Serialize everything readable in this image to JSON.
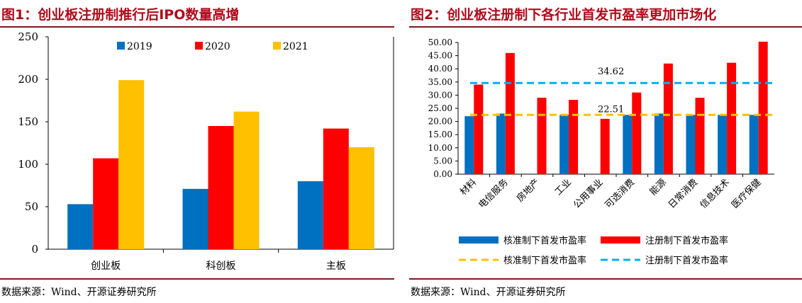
{
  "figures": [
    {
      "title": "图1：创业板注册制推行后IPO数量高增",
      "source": "数据来源：Wind、开源证券研究所"
    },
    {
      "title": "图2：创业板注册制下各行业首发市盈率更加市场化",
      "source": "数据来源：Wind、开源证券研究所"
    }
  ],
  "colors": {
    "blue": "#0070c0",
    "red": "#ff0000",
    "gold": "#ffc000",
    "cyan": "#00b0f0",
    "title_red": "#b00a1a"
  },
  "chart_data": [
    {
      "type": "bar",
      "title": "图1：创业板注册制推行后IPO数量高增",
      "categories": [
        "创业板",
        "科创板",
        "主板"
      ],
      "series": [
        {
          "name": "2019",
          "values": [
            53,
            71,
            80
          ]
        },
        {
          "name": "2020",
          "values": [
            107,
            145,
            142
          ]
        },
        {
          "name": "2021",
          "values": [
            199,
            162,
            120
          ]
        }
      ],
      "ylim": [
        0,
        250
      ],
      "yticks": [
        "0",
        "50",
        "100",
        "150",
        "200",
        "250"
      ],
      "legend": "top",
      "grid": false
    },
    {
      "type": "bar",
      "title": "图2：创业板注册制下各行业首发市盈率更加市场化",
      "categories": [
        "材料",
        "电信服务",
        "房地产",
        "工业",
        "公用事业",
        "可选消费",
        "能源",
        "日常消费",
        "信息技术",
        "医疗保健"
      ],
      "series": [
        {
          "name": "核准制下首发市盈率",
          "values": [
            22,
            23,
            null,
            22.5,
            null,
            22.5,
            23,
            22.5,
            22.5,
            22.5
          ]
        },
        {
          "name": "注册制下首发市盈率",
          "values": [
            34,
            46,
            29,
            28.2,
            21,
            31,
            42,
            29,
            42.3,
            50.3
          ]
        }
      ],
      "reference_lines": [
        {
          "name": "核准制下首发市盈率",
          "value": 22.51,
          "label": "22.51"
        },
        {
          "name": "注册制下首发市盈率",
          "value": 34.62,
          "label": "34.62"
        }
      ],
      "ylim": [
        0,
        50
      ],
      "yticks": [
        "0.00",
        "5.00",
        "10.00",
        "15.00",
        "20.00",
        "25.00",
        "30.00",
        "35.00",
        "40.00",
        "45.00",
        "50.00"
      ],
      "legend": "bottom",
      "grid": false
    }
  ]
}
